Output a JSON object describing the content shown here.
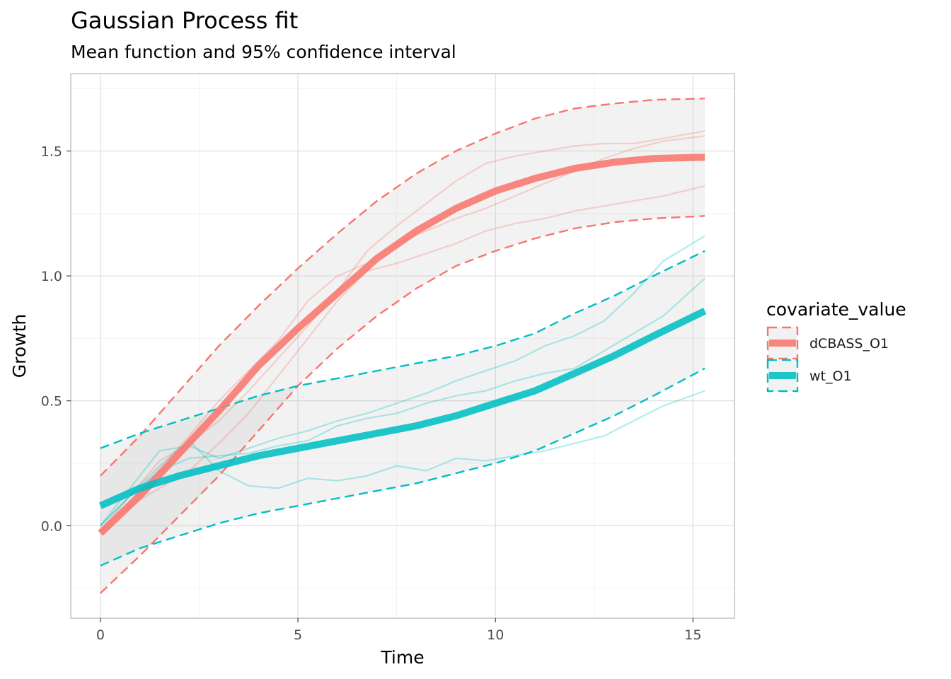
{
  "chart_data": {
    "type": "line",
    "title": "Gaussian Process fit",
    "subtitle": "Mean function and 95% confidence interval",
    "xlabel": "Time",
    "ylabel": "Growth",
    "xlim": [
      -0.75,
      16.05
    ],
    "ylim": [
      -0.37,
      1.81
    ],
    "x_ticks": [
      0,
      5,
      10,
      15
    ],
    "x_tick_labels": [
      "0",
      "5",
      "10",
      "15"
    ],
    "y_ticks": [
      0.0,
      0.5,
      1.0,
      1.5
    ],
    "y_tick_labels": [
      "0.0",
      "0.5",
      "1.0",
      "1.5"
    ],
    "grid": true,
    "legend": {
      "title": "covariate_value",
      "position": "right"
    },
    "series": [
      {
        "name": "dCBASS_O1",
        "color": "#F8766D",
        "mean": {
          "x": [
            0,
            1,
            2,
            3,
            4,
            5,
            6,
            7,
            8,
            9,
            10,
            11,
            12,
            13,
            14,
            15.3
          ],
          "y": [
            -0.03,
            0.12,
            0.29,
            0.46,
            0.64,
            0.79,
            0.93,
            1.07,
            1.18,
            1.27,
            1.34,
            1.39,
            1.43,
            1.455,
            1.47,
            1.475
          ]
        },
        "upper": {
          "x": [
            0,
            1,
            2,
            3,
            4,
            5,
            6,
            7,
            8,
            9,
            10,
            11,
            12,
            13,
            14,
            15.3
          ],
          "y": [
            0.2,
            0.36,
            0.54,
            0.72,
            0.88,
            1.03,
            1.17,
            1.3,
            1.41,
            1.5,
            1.57,
            1.63,
            1.67,
            1.69,
            1.705,
            1.71
          ]
        },
        "lower": {
          "x": [
            0,
            1,
            2,
            3,
            4,
            5,
            6,
            7,
            8,
            9,
            10,
            11,
            12,
            13,
            14,
            15.3
          ],
          "y": [
            -0.27,
            -0.12,
            0.04,
            0.2,
            0.38,
            0.56,
            0.71,
            0.84,
            0.95,
            1.04,
            1.1,
            1.15,
            1.19,
            1.215,
            1.23,
            1.24
          ]
        },
        "observations": [
          {
            "x": [
              0,
              0.75,
              1.5,
              2.25,
              3,
              3.75,
              4.5,
              5.25,
              6,
              6.75,
              7.5,
              8.25,
              9,
              9.75,
              10.5,
              11.25,
              12,
              12.75,
              13.5,
              14.25,
              15.3
            ],
            "y": [
              -0.02,
              0.1,
              0.23,
              0.36,
              0.5,
              0.62,
              0.74,
              0.9,
              1.0,
              1.05,
              1.13,
              1.18,
              1.23,
              1.27,
              1.32,
              1.37,
              1.42,
              1.47,
              1.51,
              1.54,
              1.56
            ]
          },
          {
            "x": [
              0,
              0.75,
              1.5,
              2.25,
              3,
              3.75,
              4.5,
              5.25,
              6,
              6.75,
              7.5,
              8.25,
              9,
              9.75,
              10.5,
              11.25,
              12,
              12.75,
              13.5,
              14.25,
              15.3
            ],
            "y": [
              -0.02,
              0.12,
              0.26,
              0.33,
              0.42,
              0.54,
              0.67,
              0.8,
              0.94,
              1.1,
              1.2,
              1.29,
              1.38,
              1.45,
              1.48,
              1.5,
              1.52,
              1.53,
              1.53,
              1.55,
              1.58
            ]
          },
          {
            "x": [
              0,
              0.75,
              1.5,
              2.25,
              3,
              3.75,
              4.5,
              5.25,
              6,
              6.75,
              7.5,
              8.25,
              9,
              9.75,
              10.5,
              11.25,
              12,
              12.75,
              13.5,
              14.25,
              15.3
            ],
            "y": [
              -0.02,
              0.08,
              0.15,
              0.22,
              0.33,
              0.45,
              0.6,
              0.75,
              0.9,
              1.02,
              1.05,
              1.09,
              1.13,
              1.18,
              1.21,
              1.23,
              1.26,
              1.28,
              1.3,
              1.32,
              1.36
            ]
          }
        ]
      },
      {
        "name": "wt_O1",
        "color": "#00BFC4",
        "mean": {
          "x": [
            0,
            1,
            2,
            3,
            4,
            5,
            6,
            7,
            8,
            9,
            10,
            11,
            12,
            13,
            14,
            15.3
          ],
          "y": [
            0.08,
            0.15,
            0.2,
            0.24,
            0.28,
            0.31,
            0.34,
            0.37,
            0.4,
            0.44,
            0.49,
            0.54,
            0.61,
            0.68,
            0.76,
            0.86
          ]
        },
        "upper": {
          "x": [
            0,
            1,
            2,
            3,
            4,
            5,
            6,
            7,
            8,
            9,
            10,
            11,
            12,
            13,
            14,
            15.3
          ],
          "y": [
            0.31,
            0.37,
            0.42,
            0.47,
            0.52,
            0.56,
            0.59,
            0.62,
            0.65,
            0.68,
            0.72,
            0.77,
            0.85,
            0.92,
            1.0,
            1.1
          ]
        },
        "lower": {
          "x": [
            0,
            1,
            2,
            3,
            4,
            5,
            6,
            7,
            8,
            9,
            10,
            11,
            12,
            13,
            14,
            15.3
          ],
          "y": [
            -0.16,
            -0.09,
            -0.04,
            0.01,
            0.05,
            0.08,
            0.11,
            0.14,
            0.17,
            0.21,
            0.25,
            0.3,
            0.37,
            0.44,
            0.52,
            0.63
          ]
        },
        "observations": [
          {
            "x": [
              0,
              0.75,
              1.5,
              2.25,
              3,
              3.75,
              4.5,
              5.25,
              6,
              6.75,
              7.5,
              8.25,
              9,
              9.75,
              10.5,
              11.25,
              12,
              12.75,
              13.5,
              14.25,
              15.3
            ],
            "y": [
              0.0,
              0.15,
              0.3,
              0.32,
              0.27,
              0.31,
              0.35,
              0.38,
              0.42,
              0.45,
              0.49,
              0.53,
              0.58,
              0.62,
              0.66,
              0.72,
              0.76,
              0.82,
              0.93,
              1.06,
              1.16
            ]
          },
          {
            "x": [
              0,
              0.75,
              1.5,
              2.25,
              3,
              3.75,
              4.5,
              5.25,
              6,
              6.75,
              7.5,
              8.25,
              9,
              9.75,
              10.5,
              11.25,
              12,
              12.75,
              13.5,
              14.25,
              15.3
            ],
            "y": [
              0.0,
              0.12,
              0.22,
              0.27,
              0.28,
              0.29,
              0.32,
              0.34,
              0.4,
              0.43,
              0.45,
              0.49,
              0.52,
              0.54,
              0.58,
              0.61,
              0.63,
              0.7,
              0.77,
              0.84,
              0.99
            ]
          },
          {
            "x": [
              0,
              0.75,
              1.5,
              2.25,
              3,
              3.75,
              4.5,
              5.25,
              6,
              6.75,
              7.5,
              8.25,
              9,
              9.75,
              10.5,
              11.25,
              12,
              12.75,
              13.5,
              14.25,
              15.3
            ],
            "y": [
              0.0,
              0.12,
              0.24,
              0.34,
              0.22,
              0.16,
              0.15,
              0.19,
              0.18,
              0.2,
              0.24,
              0.22,
              0.27,
              0.26,
              0.28,
              0.3,
              0.33,
              0.36,
              0.42,
              0.48,
              0.54
            ]
          }
        ]
      }
    ]
  }
}
